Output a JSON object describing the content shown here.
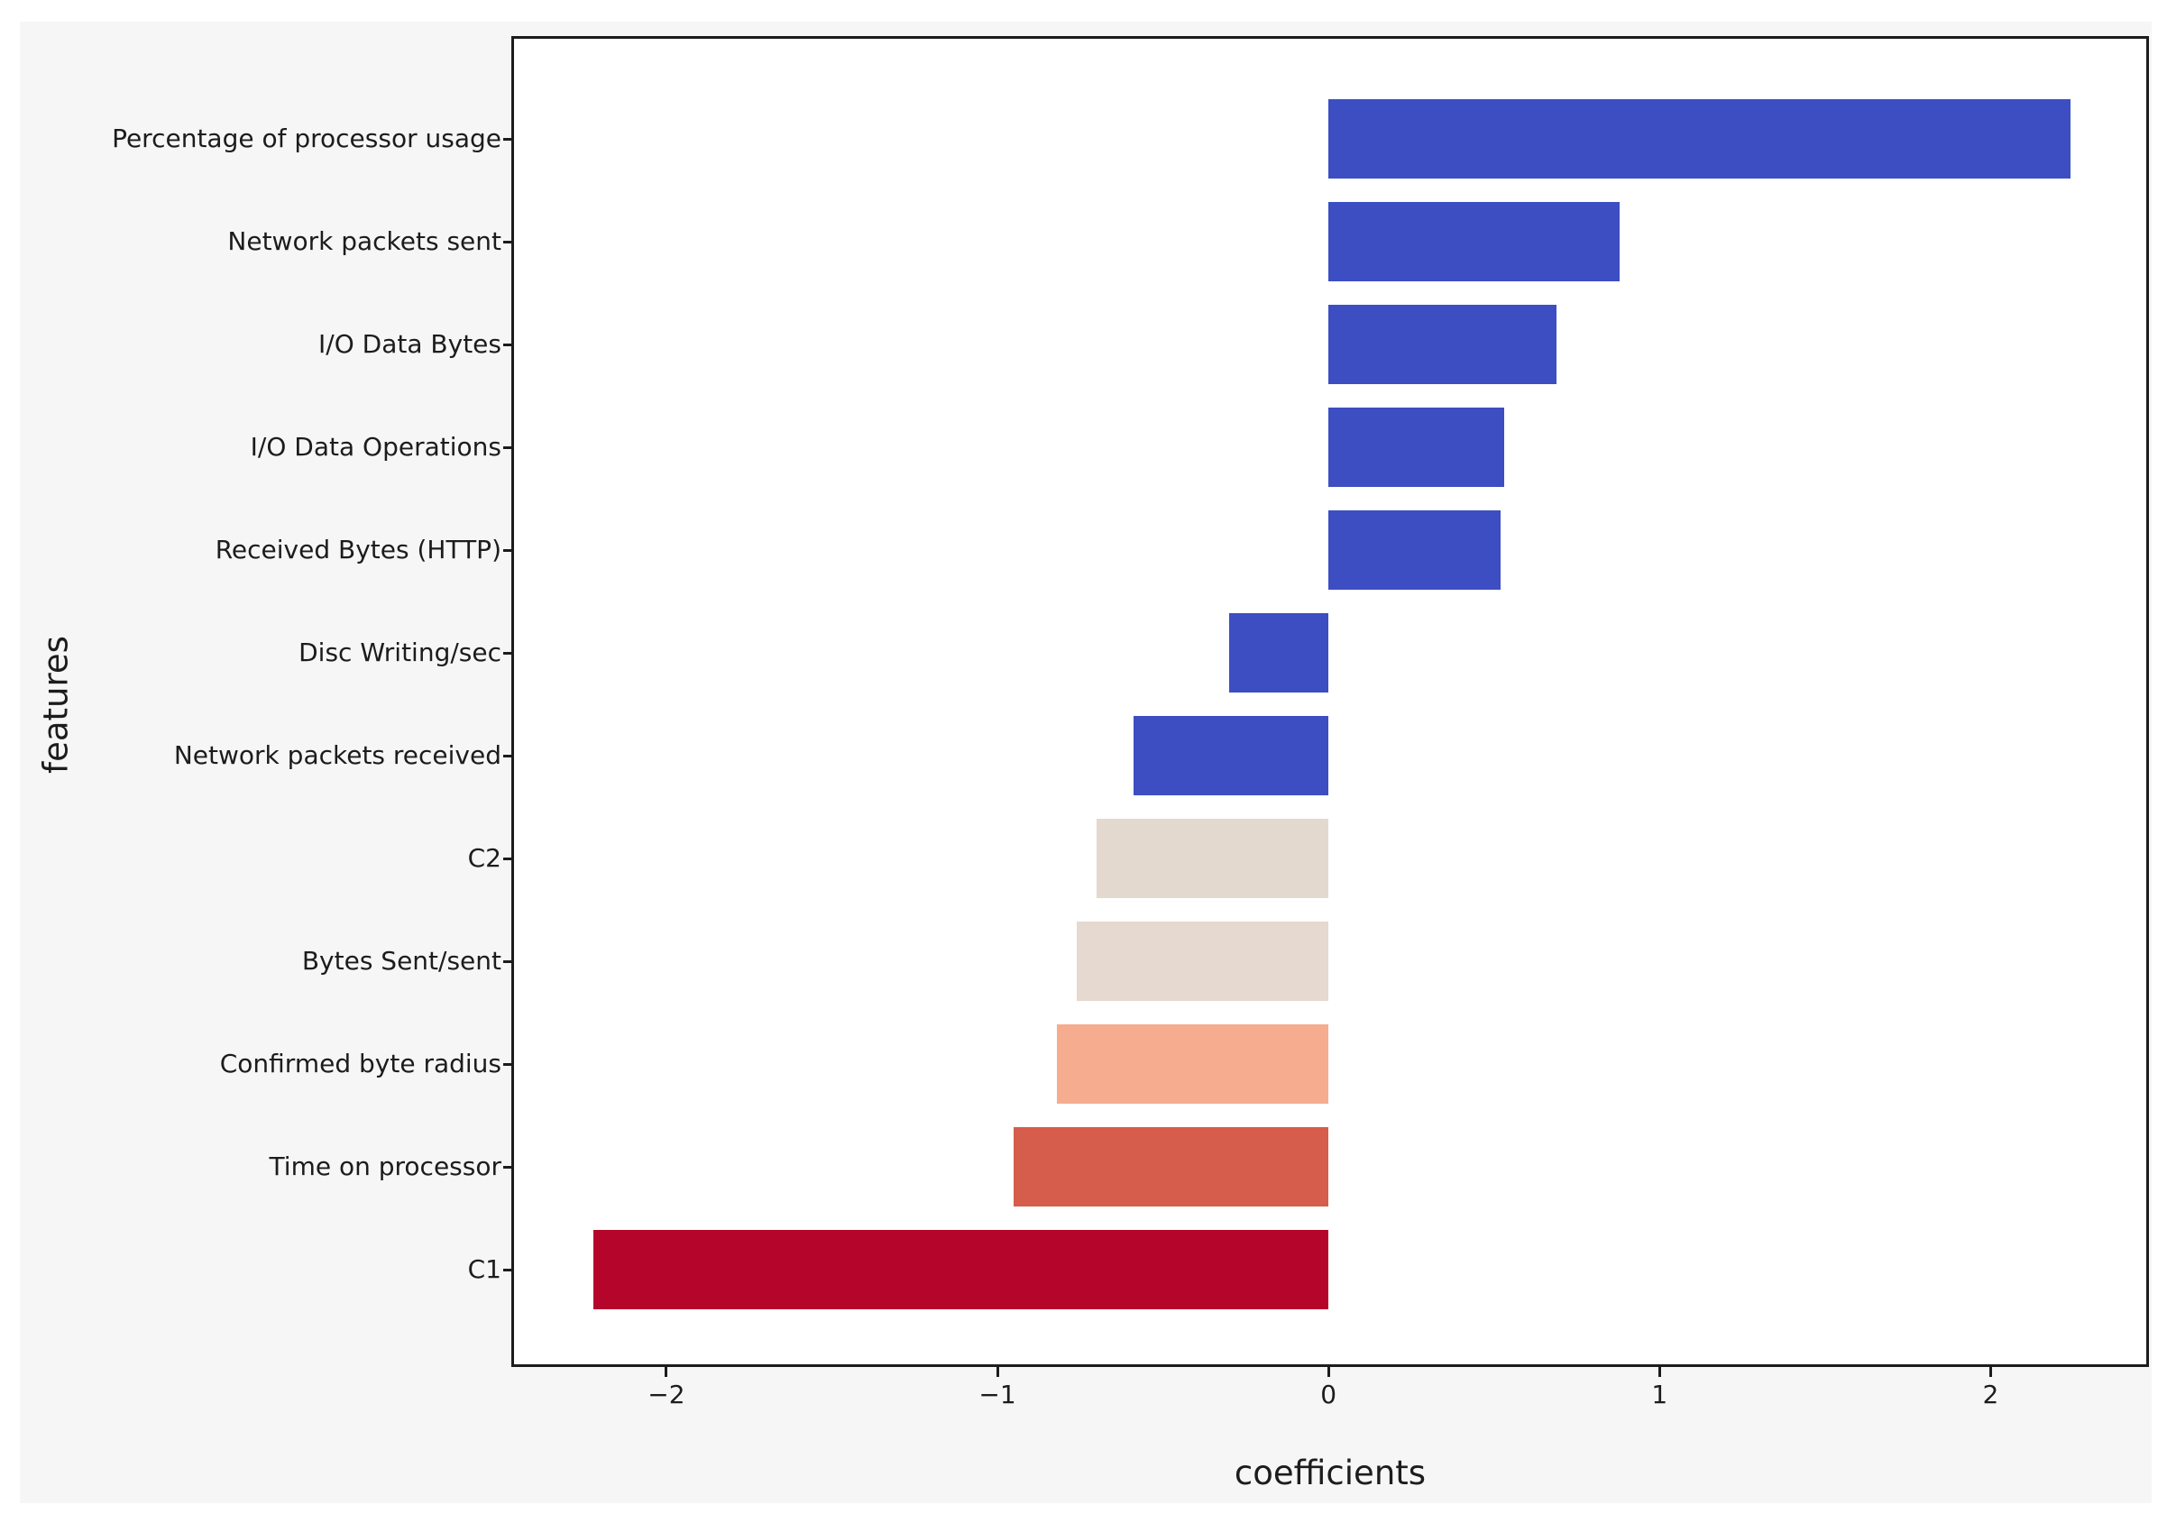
{
  "figure": {
    "background_color": "#f6f6f7",
    "plot_background_color": "#ffffff",
    "spine_color": "#1c1c1c",
    "text_color": "#1c1c1c"
  },
  "chart_data": {
    "type": "bar",
    "orientation": "horizontal",
    "title": "",
    "xlabel": "coefficients",
    "ylabel": "features",
    "grid": false,
    "legend": null,
    "xlim": [
      -2.46,
      2.47
    ],
    "x_ticks": [
      -2,
      -1,
      0,
      1,
      2
    ],
    "x_tick_labels": [
      "−2",
      "−1",
      "0",
      "1",
      "2"
    ],
    "categories": [
      "Percentage of processor usage",
      "Network packets sent",
      "I/O Data Bytes",
      "I/O Data Operations",
      "Received Bytes (HTTP)",
      "Disc Writing/sec",
      "Network packets received",
      "C2",
      "Bytes Sent/sent",
      "Confirmed byte radius",
      "Time on processor",
      "C1"
    ],
    "values": [
      2.24,
      0.88,
      0.69,
      0.53,
      0.52,
      -0.3,
      -0.59,
      -0.7,
      -0.76,
      -0.82,
      -0.95,
      -2.22
    ],
    "bar_colors": [
      "#3D4EC2",
      "#3D4EC2",
      "#3D4EC2",
      "#3D4EC2",
      "#3D4EC2",
      "#3D4EC2",
      "#3D4EC2",
      "#E3D9CF",
      "#E5D9D0",
      "#F6AC8E",
      "#D65C4B",
      "#B6052A"
    ]
  }
}
